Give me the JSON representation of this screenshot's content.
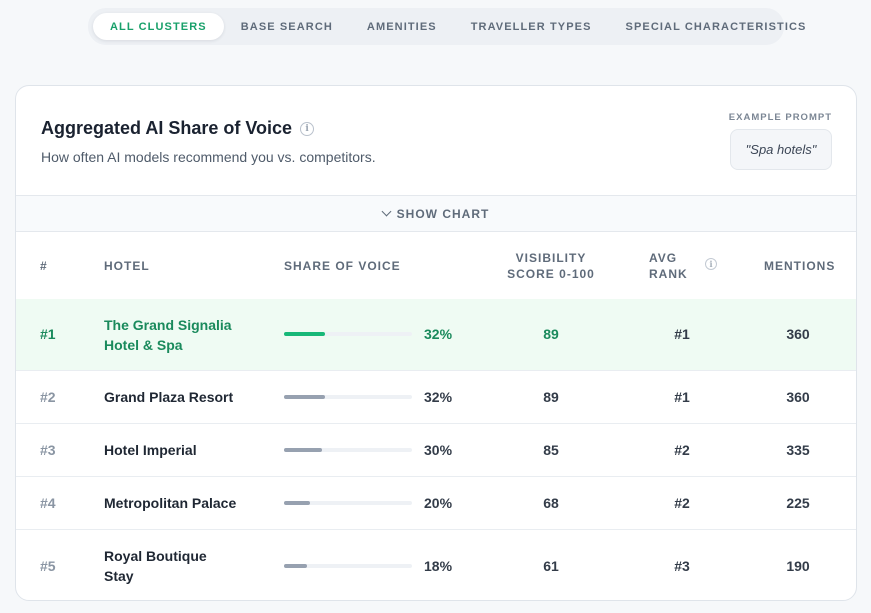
{
  "tabs": [
    {
      "label": "ALL CLUSTERS",
      "active": true
    },
    {
      "label": "BASE SEARCH",
      "active": false
    },
    {
      "label": "AMENITIES",
      "active": false
    },
    {
      "label": "TRAVELLER TYPES",
      "active": false
    },
    {
      "label": "SPECIAL CHARACTERISTICS",
      "active": false
    }
  ],
  "card": {
    "title": "Aggregated AI Share of Voice",
    "subtitle": "How often AI models recommend you vs. competitors.",
    "example_label": "EXAMPLE PROMPT",
    "example_prompt": "\"Spa hotels\"",
    "show_chart_label": "SHOW CHART"
  },
  "table": {
    "headers": {
      "rank": "#",
      "hotel": "HOTEL",
      "share": "SHARE OF VOICE",
      "visibility_1": "VISIBILITY",
      "visibility_2": "SCORE 0-100",
      "avg_rank_1": "AVG",
      "avg_rank_2": "RANK",
      "mentions": "MENTIONS"
    },
    "rows": [
      {
        "rank": "#1",
        "hotel": "The Grand Signalia Hotel & Spa",
        "share_pct": "32%",
        "share_value": 32,
        "visibility": "89",
        "avg_rank": "#1",
        "mentions": "360",
        "highlight": true
      },
      {
        "rank": "#2",
        "hotel": "Grand Plaza Resort",
        "share_pct": "32%",
        "share_value": 32,
        "visibility": "89",
        "avg_rank": "#1",
        "mentions": "360"
      },
      {
        "rank": "#3",
        "hotel": "Hotel Imperial",
        "share_pct": "30%",
        "share_value": 30,
        "visibility": "85",
        "avg_rank": "#2",
        "mentions": "335"
      },
      {
        "rank": "#4",
        "hotel": "Metropolitan Palace",
        "share_pct": "20%",
        "share_value": 20,
        "visibility": "68",
        "avg_rank": "#2",
        "mentions": "225"
      },
      {
        "rank": "#5",
        "hotel": "Royal Boutique Stay",
        "share_pct": "18%",
        "share_value": 18,
        "visibility": "61",
        "avg_rank": "#3",
        "mentions": "190"
      }
    ]
  },
  "icons": {
    "info": "info-icon",
    "chevron": "chevron-down-icon"
  },
  "colors": {
    "accent": "#18a06a",
    "highlight_bg": "#effbf3",
    "bar_accent": "#17b878",
    "bar_default": "#97a1b0"
  }
}
